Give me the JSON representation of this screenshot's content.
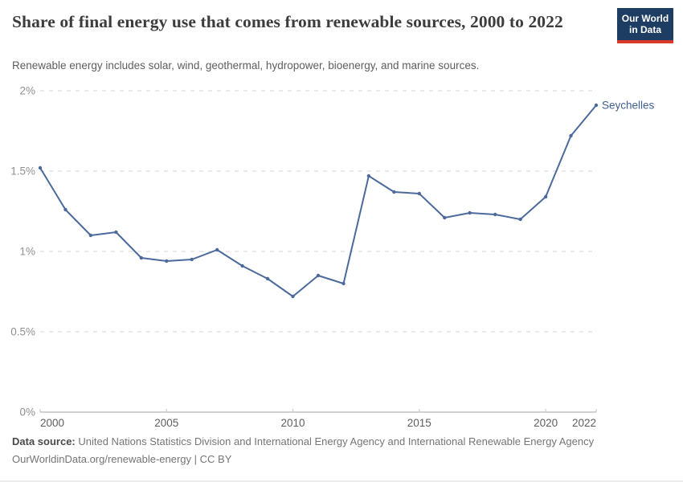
{
  "header": {
    "title": "Share of final energy use that comes from renewable sources, 2000 to 2022",
    "subtitle": "Renewable energy includes solar, wind, geothermal, hydropower, bioenergy, and marine sources.",
    "logo": {
      "line1": "Our World",
      "line2": "in Data",
      "bg_color": "#1d3d63",
      "accent_color": "#d93a2b"
    }
  },
  "chart_data": {
    "type": "line",
    "title": "Share of final energy use that comes from renewable sources, 2000 to 2022",
    "xlabel": "",
    "ylabel": "",
    "xlim": [
      2000,
      2022
    ],
    "ylim": [
      0,
      2
    ],
    "grid": "horizontal-dashed",
    "legend_position": "end-of-line-label",
    "x_ticks": [
      2000,
      2005,
      2010,
      2015,
      2020,
      2022
    ],
    "x_tick_labels": [
      "2000",
      "2005",
      "2010",
      "2015",
      "2020",
      "2022"
    ],
    "y_ticks": [
      0,
      0.5,
      1,
      1.5,
      2
    ],
    "y_tick_labels": [
      "0%",
      "0.5%",
      "1%",
      "1.5%",
      "2%"
    ],
    "series": [
      {
        "name": "Seychelles",
        "color": "#4c6a9c",
        "label_color": "#40618f",
        "x": [
          2000,
          2001,
          2002,
          2003,
          2004,
          2005,
          2006,
          2007,
          2008,
          2009,
          2010,
          2011,
          2012,
          2013,
          2014,
          2015,
          2016,
          2017,
          2018,
          2019,
          2020,
          2021,
          2022
        ],
        "values": [
          1.52,
          1.26,
          1.1,
          1.12,
          0.96,
          0.94,
          0.95,
          1.01,
          0.91,
          0.83,
          0.72,
          0.85,
          0.8,
          1.47,
          1.37,
          1.36,
          1.21,
          1.24,
          1.23,
          1.2,
          1.34,
          1.72,
          1.91
        ]
      }
    ]
  },
  "footer": {
    "datasource_label": "Data source:",
    "datasource_text": " United Nations Statistics Division and International Energy Agency and International Renewable Energy Agency",
    "license_link": "OurWorldinData.org/renewable-energy",
    "license_suffix": " | CC BY"
  }
}
